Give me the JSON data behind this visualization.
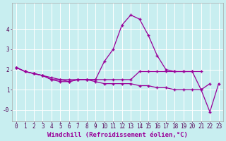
{
  "xlabel": "Windchill (Refroidissement éolien,°C)",
  "background_color": "#c8eef0",
  "grid_color": "#ffffff",
  "line_color": "#990099",
  "x": [
    0,
    1,
    2,
    3,
    4,
    5,
    6,
    7,
    8,
    9,
    10,
    11,
    12,
    13,
    14,
    15,
    16,
    17,
    18,
    19,
    20,
    21,
    22,
    23
  ],
  "line1": [
    2.1,
    1.9,
    1.8,
    1.7,
    1.6,
    1.5,
    1.5,
    1.5,
    1.5,
    1.5,
    1.5,
    1.5,
    1.5,
    1.5,
    1.9,
    1.9,
    1.9,
    1.9,
    1.9,
    1.9,
    1.9,
    1.0,
    1.3,
    null
  ],
  "line2": [
    2.1,
    1.9,
    1.8,
    1.7,
    1.5,
    1.5,
    1.4,
    1.5,
    1.5,
    1.5,
    2.4,
    3.0,
    4.2,
    4.7,
    4.5,
    3.7,
    2.7,
    2.0,
    1.9,
    1.9,
    1.9,
    1.9,
    null,
    null
  ],
  "line3": [
    2.1,
    1.9,
    1.8,
    1.7,
    1.5,
    1.4,
    1.4,
    1.5,
    1.5,
    1.4,
    1.3,
    1.3,
    1.3,
    1.3,
    1.2,
    1.2,
    1.1,
    1.1,
    1.0,
    1.0,
    1.0,
    1.0,
    -0.1,
    1.3
  ],
  "ylim": [
    -0.55,
    5.3
  ],
  "xlim": [
    -0.5,
    23.5
  ],
  "xticks": [
    0,
    1,
    2,
    3,
    4,
    5,
    6,
    7,
    8,
    9,
    10,
    11,
    12,
    13,
    14,
    15,
    16,
    17,
    18,
    19,
    20,
    21,
    22,
    23
  ],
  "yticks": [
    0,
    1,
    2,
    3,
    4
  ],
  "ytick_labels": [
    "-0",
    "1",
    "2",
    "3",
    "4"
  ],
  "tick_fontsize": 5.5,
  "xlabel_fontsize": 6.5,
  "line_width": 0.9,
  "marker_size": 3.0
}
